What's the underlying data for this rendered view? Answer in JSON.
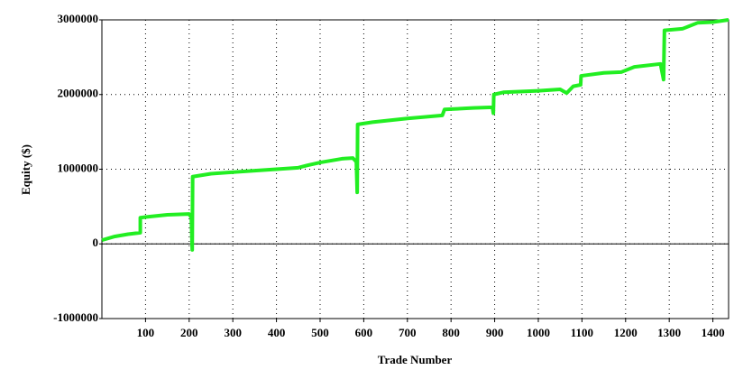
{
  "chart_data": {
    "type": "line",
    "x_label": "Trade Number",
    "y_label": "Equity ($)",
    "xlim": [
      0,
      1436
    ],
    "ylim": [
      -1000000,
      3000000
    ],
    "xticks": [
      100,
      200,
      300,
      400,
      500,
      600,
      700,
      800,
      900,
      1000,
      1100,
      1200,
      1300,
      1400
    ],
    "yticks": [
      -1000000,
      0,
      1000000,
      2000000,
      3000000
    ],
    "grid": true,
    "x": [
      0,
      30,
      60,
      88,
      88,
      100,
      150,
      200,
      205,
      207,
      208,
      250,
      300,
      350,
      400,
      450,
      470,
      500,
      550,
      575,
      583,
      585,
      586,
      620,
      700,
      780,
      785,
      850,
      895,
      897,
      898,
      920,
      1000,
      1050,
      1065,
      1080,
      1097,
      1098,
      1150,
      1190,
      1220,
      1280,
      1287,
      1289,
      1330,
      1365,
      1400,
      1436
    ],
    "series": [
      {
        "color": "#22ee22",
        "values": [
          50000,
          100000,
          130000,
          150000,
          350000,
          360000,
          390000,
          400000,
          350000,
          -80000,
          900000,
          940000,
          960000,
          980000,
          1000000,
          1020000,
          1050000,
          1090000,
          1140000,
          1150000,
          1100000,
          690000,
          1600000,
          1630000,
          1680000,
          1720000,
          1800000,
          1820000,
          1830000,
          1750000,
          2000000,
          2030000,
          2050000,
          2070000,
          2020000,
          2110000,
          2130000,
          2250000,
          2290000,
          2300000,
          2370000,
          2410000,
          2200000,
          2860000,
          2880000,
          2960000,
          2970000,
          3000000
        ]
      }
    ]
  }
}
